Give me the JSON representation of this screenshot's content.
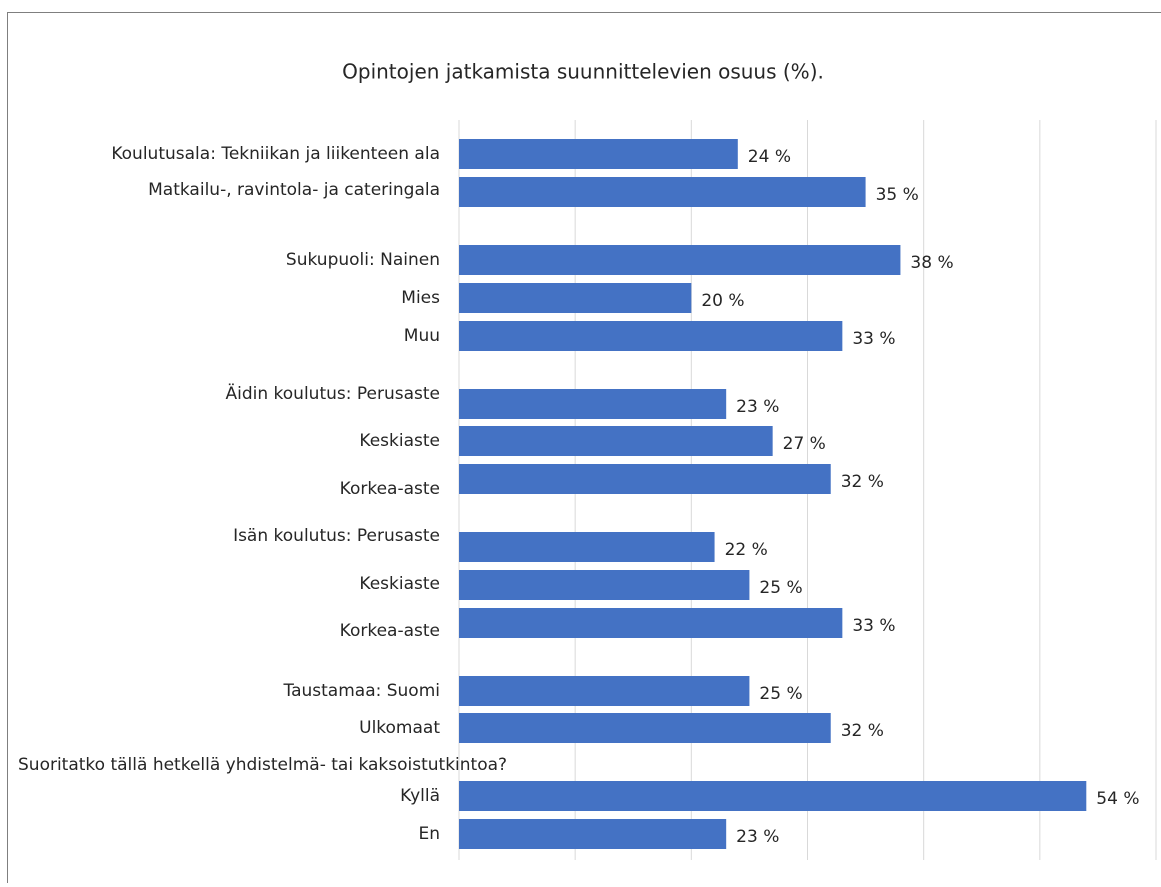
{
  "chart_data": {
    "type": "bar",
    "orientation": "horizontal",
    "title": "Opintojen jatkamista suunnittelevien osuus (%).",
    "group_label": "Suoritatko tällä hetkellä yhdistelmä- tai kaksoistutkintoa?",
    "categories": [
      "Koulutusala: Tekniikan ja liikenteen ala",
      "Matkailu-, ravintola- ja cateringala",
      "Sukupuoli: Nainen",
      "Mies",
      "Muu",
      "Äidin koulutus: Perusaste",
      "Keskiaste",
      "Korkea-aste",
      "Isän koulutus: Perusaste",
      "Keskiaste",
      "Korkea-aste",
      "Taustamaa: Suomi",
      "Ulkomaat",
      "Kyllä",
      "En"
    ],
    "values": [
      24,
      35,
      38,
      20,
      33,
      23,
      27,
      32,
      22,
      25,
      33,
      25,
      32,
      54,
      23
    ],
    "value_labels": [
      "24 %",
      "35 %",
      "38 %",
      "20 %",
      "33 %",
      "23 %",
      "27 %",
      "32 %",
      "22 %",
      "25 %",
      "33 %",
      "25 %",
      "32 %",
      "54 %",
      "23 %"
    ],
    "color": "#4472c4",
    "xlim": [
      0,
      60
    ],
    "xticks": [
      0,
      10,
      20,
      30,
      40,
      50,
      60
    ],
    "grid": true
  }
}
